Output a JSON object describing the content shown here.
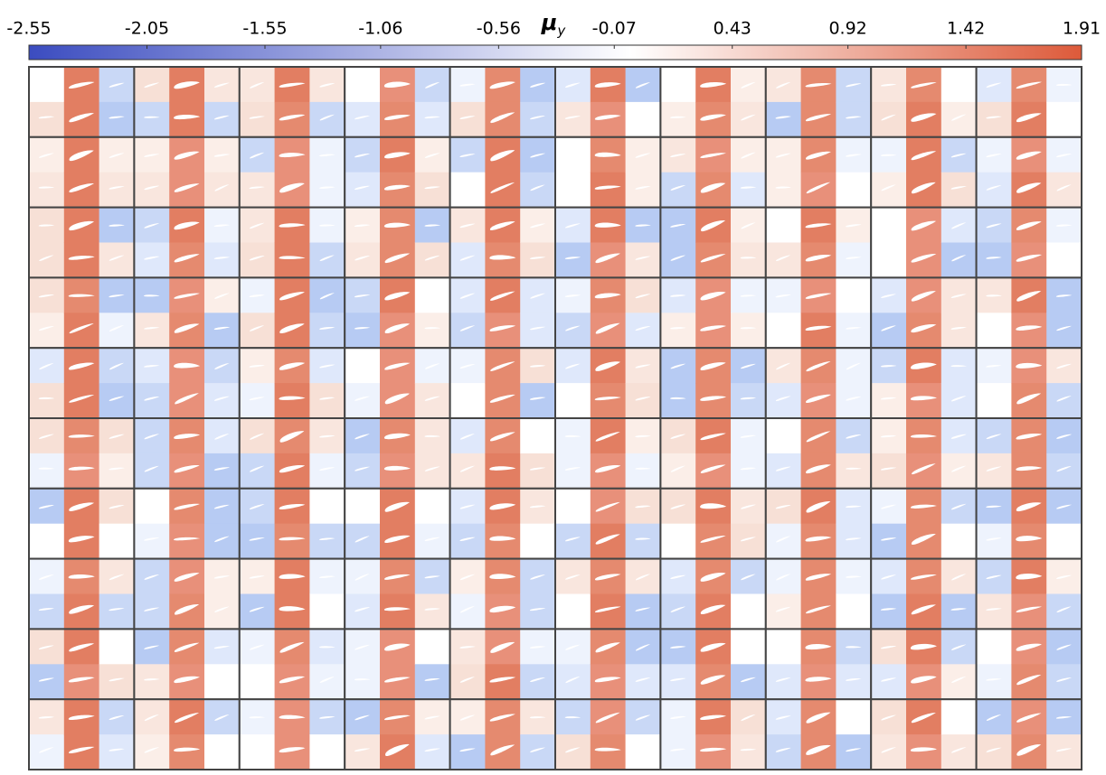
{
  "colorbar": {
    "label": "μ",
    "label_sub": "y",
    "lim": [
      -2.55,
      1.91
    ],
    "ticks": [
      -2.55,
      -2.05,
      -1.55,
      -1.06,
      -0.56,
      -0.07,
      0.43,
      0.92,
      1.42,
      1.91
    ],
    "colors": [
      "#3b4cc0",
      "#ffffff",
      "#dd5a3a"
    ]
  }
}
